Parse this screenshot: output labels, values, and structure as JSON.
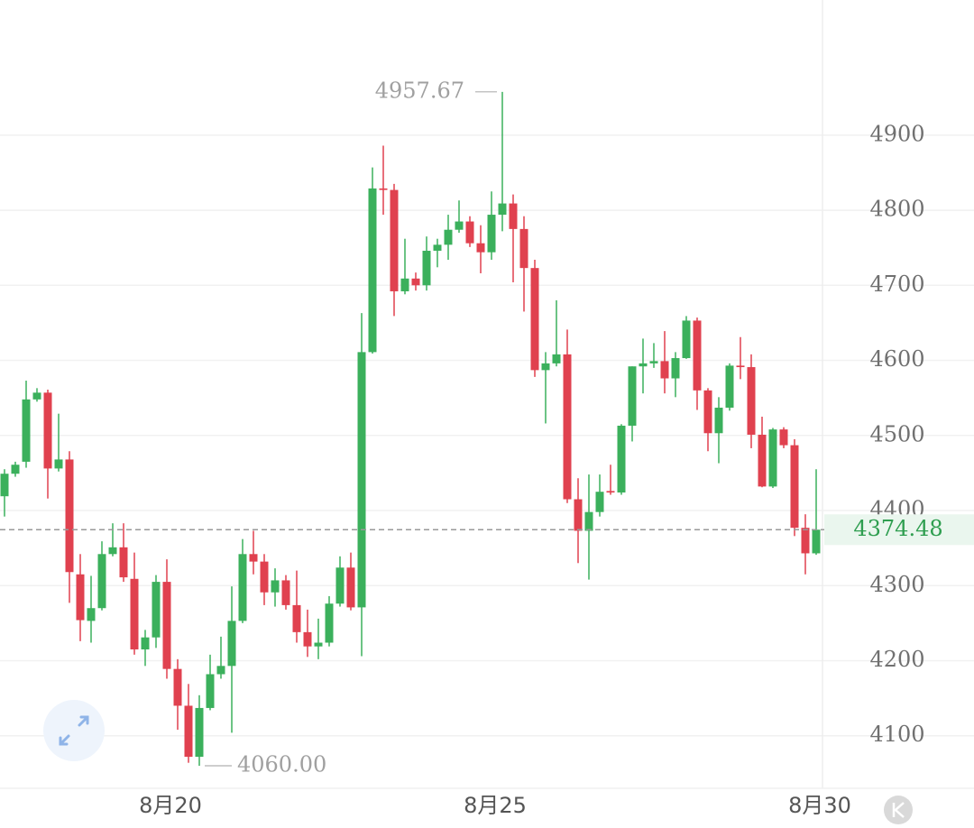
{
  "chart_data": {
    "type": "candlestick",
    "up_color": "#3bb05c",
    "down_color": "#e0414f",
    "open": [
      4419,
      4449,
      4465,
      4548,
      4557,
      4456,
      4468,
      4315,
      4253,
      4270,
      4342,
      4351,
      4309,
      4215,
      4231,
      4305,
      4189,
      4140,
      4072,
      4137,
      4182,
      4193,
      4253,
      4342,
      4332,
      4291,
      4307,
      4274,
      4238,
      4219,
      4224,
      4276,
      4324,
      4271,
      4611,
      4829,
      4827,
      4692,
      4709,
      4700,
      4746,
      4754,
      4774,
      4785,
      4756,
      4744,
      4794,
      4809,
      4775,
      4723,
      4587,
      4596,
      4608,
      4415,
      4373,
      4398,
      4426,
      4424,
      4513,
      4592,
      4596,
      4599,
      4576,
      4603,
      4653,
      4560,
      4503,
      4537,
      4593,
      4591,
      4501,
      4432,
      4508,
      4487,
      4377,
      4343
    ],
    "high": [
      4455,
      4465,
      4573,
      4563,
      4561,
      4529,
      4479,
      4342,
      4313,
      4359,
      4383,
      4383,
      4344,
      4241,
      4314,
      4335,
      4202,
      4169,
      4154,
      4208,
      4232,
      4299,
      4362,
      4373,
      4342,
      4323,
      4314,
      4320,
      4268,
      4256,
      4286,
      4339,
      4344,
      4663,
      4857,
      4886,
      4835,
      4762,
      4717,
      4765,
      4762,
      4794,
      4813,
      4792,
      4780,
      4825,
      4957.67,
      4821,
      4792,
      4734,
      4611,
      4680,
      4641,
      4443,
      4448,
      4448,
      4461,
      4515,
      4592,
      4629,
      4623,
      4639,
      4611,
      4659,
      4657,
      4563,
      4551,
      4596,
      4631,
      4608,
      4525,
      4510,
      4511,
      4495,
      4395,
      4455
    ],
    "low": [
      4392,
      4445,
      4457,
      4545,
      4416,
      4452,
      4277,
      4226,
      4224,
      4267,
      4339,
      4305,
      4208,
      4193,
      4217,
      4176,
      4108,
      4064,
      4060,
      4134,
      4176,
      4104,
      4250,
      4315,
      4274,
      4272,
      4268,
      4224,
      4205,
      4202,
      4219,
      4272,
      4267,
      4206,
      4609,
      4794,
      4659,
      4688,
      4693,
      4693,
      4724,
      4734,
      4770,
      4751,
      4716,
      4734,
      4772,
      4704,
      4665,
      4578,
      4516,
      4592,
      4410,
      4330,
      4308,
      4392,
      4421,
      4421,
      4492,
      4556,
      4590,
      4556,
      4551,
      4602,
      4534,
      4479,
      4463,
      4533,
      4575,
      4483,
      4431,
      4430,
      4483,
      4366,
      4315,
      4341
    ],
    "close": [
      4449,
      4461,
      4548,
      4557,
      4456,
      4468,
      4318,
      4254,
      4270,
      4342,
      4351,
      4311,
      4215,
      4231,
      4305,
      4189,
      4140,
      4072,
      4137,
      4182,
      4193,
      4253,
      4342,
      4332,
      4291,
      4307,
      4274,
      4238,
      4219,
      4224,
      4276,
      4324,
      4271,
      4611,
      4829,
      4827,
      4692,
      4709,
      4700,
      4746,
      4754,
      4774,
      4785,
      4756,
      4744,
      4794,
      4809,
      4775,
      4723,
      4587,
      4596,
      4608,
      4415,
      4373,
      4398,
      4425,
      4424,
      4513,
      4592,
      4596,
      4599,
      4576,
      4603,
      4653,
      4560,
      4503,
      4537,
      4593,
      4591,
      4501,
      4432,
      4508,
      4487,
      4377,
      4343,
      4374.48
    ],
    "min_label": "4060.00",
    "ylim": [
      4030,
      5080
    ],
    "yticks": [
      4100,
      4200,
      4300,
      4400,
      4500,
      4600,
      4700,
      4800,
      4900
    ],
    "xticks": [
      {
        "value": 16,
        "label": "8月20"
      },
      {
        "value": 46,
        "label": "8月25"
      },
      {
        "value": 76,
        "label": "8月30"
      }
    ],
    "grid": true
  }
}
